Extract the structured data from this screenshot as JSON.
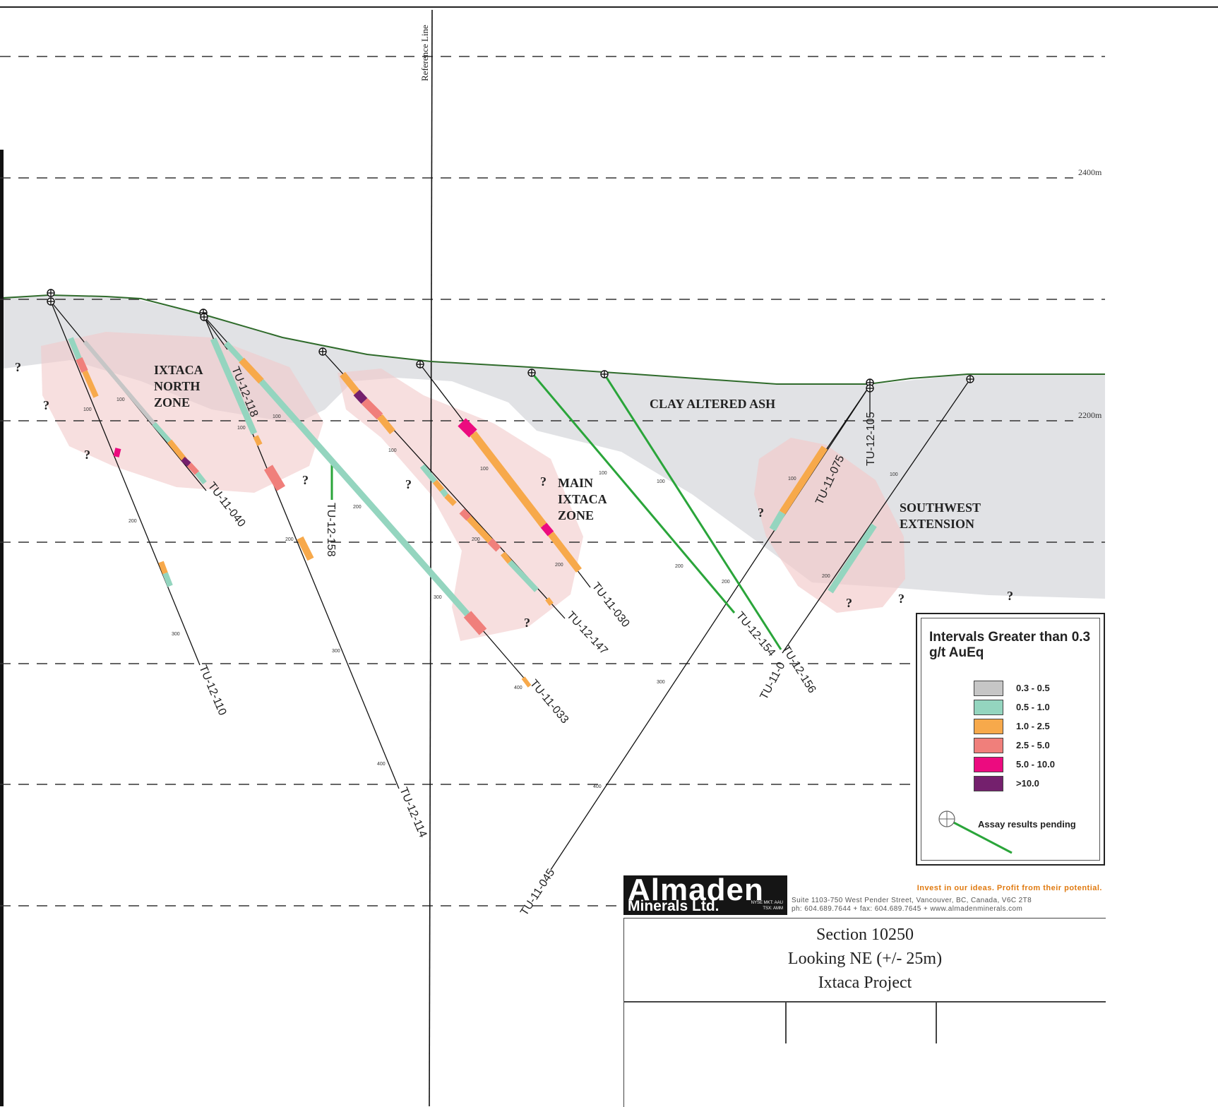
{
  "section": {
    "reference_line_label": "Reference Line",
    "elevation_labels": [
      {
        "text": "2400m",
        "level": 2400
      },
      {
        "text": "2200m",
        "level": 2200
      }
    ],
    "zone_labels": {
      "north": [
        "IXTACA",
        "NORTH",
        "ZONE"
      ],
      "main": [
        "MAIN",
        "IXTACA",
        "ZONE"
      ],
      "clay": "CLAY ALTERED ASH",
      "southwest": [
        "SOUTHWEST",
        "EXTENSION"
      ]
    },
    "unknown_marker": "?",
    "depth_ticks": [
      "100",
      "200",
      "300",
      "400"
    ],
    "drill_holes": [
      "TU-12-110",
      "TU-11-040",
      "TU-12-118",
      "TU-12-114",
      "TU-12-158",
      "TU-11-033",
      "TU-12-147",
      "TU-11-030",
      "TU-12-154",
      "TU-12-156",
      "TU-11-045",
      "TU-11-075",
      "TU-12-105",
      "TU-11-0"
    ]
  },
  "legend": {
    "title": "Intervals Greater than 0.3 g/t AuEq",
    "items": [
      {
        "label": "0.3 - 0.5",
        "color": "#c6c6c6"
      },
      {
        "label": "0.5 - 1.0",
        "color": "#94d5bf"
      },
      {
        "label": "1.0 - 2.5",
        "color": "#f7a94b"
      },
      {
        "label": "2.5 - 5.0",
        "color": "#f07f7b"
      },
      {
        "label": "5.0 - 10.0",
        "color": "#ec0b7f"
      },
      {
        "label": ">10.0",
        "color": "#74206d"
      }
    ],
    "pending_label": "Assay results pending",
    "pending_color": "#2aa53a"
  },
  "title_block": {
    "logo_main": "Almaden",
    "logo_sub": "Minerals Ltd.",
    "logo_exchange": [
      "NYSE MKT: AAU",
      "TSX: AMM"
    ],
    "tagline": "Invest in our ideas. Profit from their potential.",
    "address": "Suite 1103-750 West Pender Street, Vancouver,  BC, Canada, V6C 2T8",
    "contact": "ph: 604.689.7644  +  fax: 604.689.7645  +  www.almadenminerals.com",
    "section_name": "Section 10250",
    "looking": "Looking NE (+/- 25m)",
    "project": "Ixtaca Project"
  }
}
